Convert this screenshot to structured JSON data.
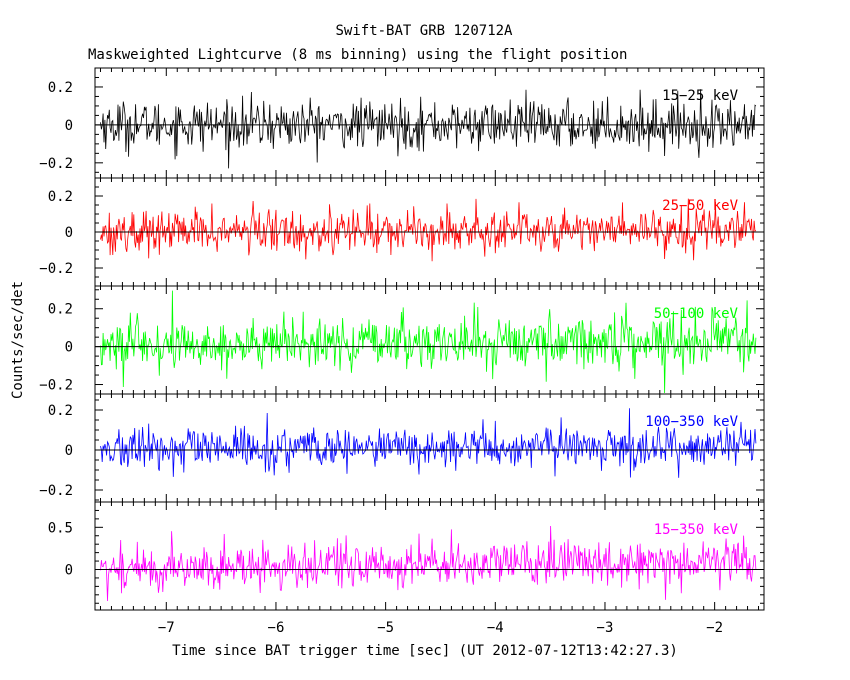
{
  "title": "Swift-BAT GRB 120712A",
  "subtitle": "Maskweighted Lightcurve (8 ms binning) using the flight position",
  "xlabel": "Time since BAT trigger time [sec] (UT 2012-07-12T13:42:27.3)",
  "ylabel": "Counts/sec/det",
  "chart_data": {
    "type": "line",
    "x_range": [
      -7.65,
      -1.55
    ],
    "x_ticks": [
      -7,
      -6,
      -5,
      -4,
      -3,
      -2
    ],
    "x_tick_labels": [
      "−7",
      "−6",
      "−5",
      "−4",
      "−3",
      "−2"
    ],
    "data_x_range": [
      -7.6,
      -1.62
    ],
    "bin_width_sec": 0.008,
    "panels": [
      {
        "band": "15−25 keV",
        "color": "#000000",
        "ylim": [
          -0.28,
          0.3
        ],
        "y_ticks": [
          -0.2,
          0,
          0.2
        ],
        "y_tick_labels": [
          "−0.2",
          "0",
          "0.2"
        ],
        "mean": 0.0,
        "noise_sigma": 0.075,
        "trend_end": 0.0
      },
      {
        "band": "25−50 keV",
        "color": "#ff0000",
        "ylim": [
          -0.3,
          0.3
        ],
        "y_ticks": [
          -0.2,
          0,
          0.2
        ],
        "y_tick_labels": [
          "−0.2",
          "0",
          "0.2"
        ],
        "mean": 0.0,
        "noise_sigma": 0.07,
        "trend_end": 0.02
      },
      {
        "band": "50−100 keV",
        "color": "#00ff00",
        "ylim": [
          -0.25,
          0.32
        ],
        "y_ticks": [
          -0.2,
          0,
          0.2
        ],
        "y_tick_labels": [
          "−0.2",
          "0",
          "0.2"
        ],
        "mean": 0.0,
        "noise_sigma": 0.08,
        "trend_end": 0.04
      },
      {
        "band": "100−350 keV",
        "color": "#0000ff",
        "ylim": [
          -0.26,
          0.28
        ],
        "y_ticks": [
          -0.2,
          0,
          0.2
        ],
        "y_tick_labels": [
          "−0.2",
          "0",
          "0.2"
        ],
        "mean": 0.0,
        "noise_sigma": 0.06,
        "trend_end": 0.02
      },
      {
        "band": "15−350 keV",
        "color": "#ff00ff",
        "ylim": [
          -0.48,
          0.8
        ],
        "y_ticks": [
          0,
          0.5
        ],
        "y_tick_labels": [
          "0",
          "0.5"
        ],
        "mean": 0.0,
        "noise_sigma": 0.16,
        "trend_end": 0.12
      }
    ]
  }
}
